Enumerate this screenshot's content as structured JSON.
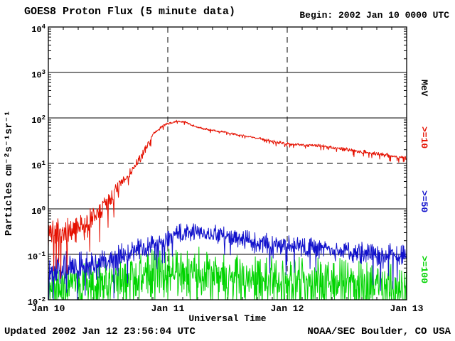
{
  "header": {
    "title": "GOES8 Proton Flux (5 minute data)",
    "begin_label": "Begin: 2002 Jan 10 0000 UTC"
  },
  "footer": {
    "updated": "Updated 2002 Jan 12 23:56:04 UTC",
    "source": "NOAA/SEC Boulder, CO USA"
  },
  "chart_data": {
    "type": "line",
    "title": "GOES8 Proton Flux (5 minute data)",
    "xlabel": "Universal Time",
    "ylabel": "Particles cm⁻²s⁻¹sr⁻¹",
    "right_axis_label": "MeV",
    "x_range_days": [
      0,
      3
    ],
    "x_major_ticks": [
      {
        "t": 0,
        "label": "Jan 10"
      },
      {
        "t": 1,
        "label": "Jan 11"
      },
      {
        "t": 2,
        "label": "Jan 12"
      },
      {
        "t": 3,
        "label": "Jan 13"
      }
    ],
    "x_minor_step_days": 0.125,
    "y_log_range": [
      -2,
      4
    ],
    "y_tick_base": "10",
    "y_tick_exponents": [
      4,
      3,
      2,
      1,
      0,
      -1,
      -2
    ],
    "threshold_exponent": 1,
    "sample_minutes": 5,
    "background": "#ffffff",
    "axis_color": "#000000",
    "grid": true,
    "legend_position": "right-vertical",
    "series": [
      {
        "label": ">=10",
        "name": ">=10 MeV protons",
        "color": "#e51000",
        "seed": 7,
        "spike_prob": 0.05,
        "keypoints": [
          [
            0.0,
            0.35,
            0.3
          ],
          [
            0.1,
            0.25,
            0.3
          ],
          [
            0.2,
            0.3,
            0.28
          ],
          [
            0.33,
            0.45,
            0.25
          ],
          [
            0.45,
            1.0,
            0.22
          ],
          [
            0.55,
            2.2,
            0.18
          ],
          [
            0.63,
            4.0,
            0.15
          ],
          [
            0.72,
            8.0,
            0.1
          ],
          [
            0.8,
            18,
            0.06
          ],
          [
            0.88,
            45,
            0.04
          ],
          [
            0.97,
            70,
            0.025
          ],
          [
            1.08,
            85,
            0.02
          ],
          [
            1.15,
            80,
            0.02
          ],
          [
            1.25,
            62,
            0.02
          ],
          [
            1.35,
            55,
            0.02
          ],
          [
            1.5,
            47,
            0.02
          ],
          [
            1.65,
            40,
            0.02
          ],
          [
            1.8,
            34,
            0.025
          ],
          [
            1.95,
            28,
            0.03
          ],
          [
            2.1,
            26,
            0.03
          ],
          [
            2.3,
            24,
            0.03
          ],
          [
            2.5,
            20,
            0.035
          ],
          [
            2.7,
            17,
            0.035
          ],
          [
            2.85,
            15,
            0.04
          ],
          [
            3.0,
            13,
            0.04
          ]
        ]
      },
      {
        "label": ">=50",
        "name": ">=50 MeV protons",
        "color": "#1212cc",
        "seed": 13,
        "spike_prob": 0.03,
        "keypoints": [
          [
            0.0,
            0.045,
            0.28
          ],
          [
            0.2,
            0.05,
            0.28
          ],
          [
            0.4,
            0.06,
            0.26
          ],
          [
            0.6,
            0.09,
            0.24
          ],
          [
            0.8,
            0.13,
            0.22
          ],
          [
            0.95,
            0.2,
            0.2
          ],
          [
            1.1,
            0.3,
            0.16
          ],
          [
            1.25,
            0.32,
            0.15
          ],
          [
            1.4,
            0.27,
            0.16
          ],
          [
            1.6,
            0.22,
            0.17
          ],
          [
            1.8,
            0.18,
            0.18
          ],
          [
            2.0,
            0.15,
            0.19
          ],
          [
            2.3,
            0.13,
            0.2
          ],
          [
            2.6,
            0.11,
            0.21
          ],
          [
            3.0,
            0.09,
            0.22
          ]
        ]
      },
      {
        "label": ">=100",
        "name": ">=100 MeV protons",
        "color": "#00d400",
        "seed": 21,
        "spike_prob": 0.1,
        "keypoints": [
          [
            0.0,
            0.02,
            0.4
          ],
          [
            0.3,
            0.024,
            0.42
          ],
          [
            0.6,
            0.03,
            0.45
          ],
          [
            0.9,
            0.036,
            0.46
          ],
          [
            1.2,
            0.038,
            0.46
          ],
          [
            1.5,
            0.034,
            0.45
          ],
          [
            1.8,
            0.03,
            0.45
          ],
          [
            2.1,
            0.027,
            0.44
          ],
          [
            2.5,
            0.024,
            0.43
          ],
          [
            3.0,
            0.02,
            0.42
          ]
        ]
      }
    ]
  }
}
